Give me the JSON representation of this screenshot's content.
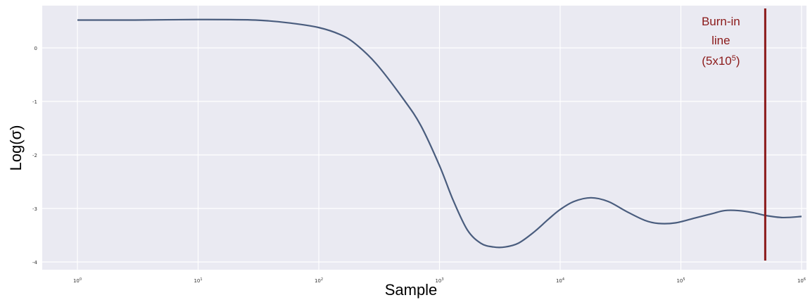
{
  "chart_data": {
    "type": "line",
    "title": "",
    "xlabel": "Sample",
    "ylabel": "Log(σ)",
    "x_scale": "log",
    "xlim": [
      1,
      1000000
    ],
    "ylim": [
      -4.2,
      0.8
    ],
    "grid": true,
    "x_tick_labels": [
      {
        "value": 1,
        "base": "10",
        "exp": "0"
      },
      {
        "value": 10,
        "base": "10",
        "exp": "1"
      },
      {
        "value": 100,
        "base": "10",
        "exp": "2"
      },
      {
        "value": 1000,
        "base": "10",
        "exp": "3"
      },
      {
        "value": 10000,
        "base": "10",
        "exp": "4"
      },
      {
        "value": 100000,
        "base": "10",
        "exp": "5"
      },
      {
        "value": 1000000,
        "base": "10",
        "exp": "6"
      }
    ],
    "y_ticks": [
      0,
      -1,
      -2,
      -3,
      -4
    ],
    "y_tick_labels": [
      "0",
      "-1",
      "-2",
      "-3",
      "-4"
    ],
    "series": [
      {
        "x": [
          1,
          3,
          10,
          30,
          60,
          100,
          150,
          200,
          300,
          500,
          700,
          1000,
          1300,
          1700,
          2200,
          2800,
          3500,
          4500,
          6000,
          8000,
          10000,
          13000,
          18000,
          25000,
          35000,
          50000,
          65000,
          90000,
          130000,
          180000,
          230000,
          300000,
          400000,
          500000,
          700000,
          1000000
        ],
        "y": [
          0.52,
          0.52,
          0.53,
          0.52,
          0.46,
          0.38,
          0.25,
          0.08,
          -0.3,
          -0.95,
          -1.45,
          -2.2,
          -2.85,
          -3.4,
          -3.65,
          -3.72,
          -3.72,
          -3.65,
          -3.45,
          -3.2,
          -3.02,
          -2.87,
          -2.8,
          -2.87,
          -3.05,
          -3.22,
          -3.28,
          -3.27,
          -3.18,
          -3.1,
          -3.04,
          -3.04,
          -3.08,
          -3.13,
          -3.17,
          -3.15
        ],
        "color": "#4a5d7e"
      }
    ],
    "annotations": [
      {
        "type": "vline",
        "x": 500000,
        "color": "#8b1a1a",
        "label_lines": [
          "Burn-in",
          "line"
        ],
        "label_formula": {
          "prefix": "(5x10",
          "exp": "5",
          "suffix": ")"
        }
      }
    ],
    "background_color": "#eaeaf2",
    "grid_color": "#ffffff"
  }
}
